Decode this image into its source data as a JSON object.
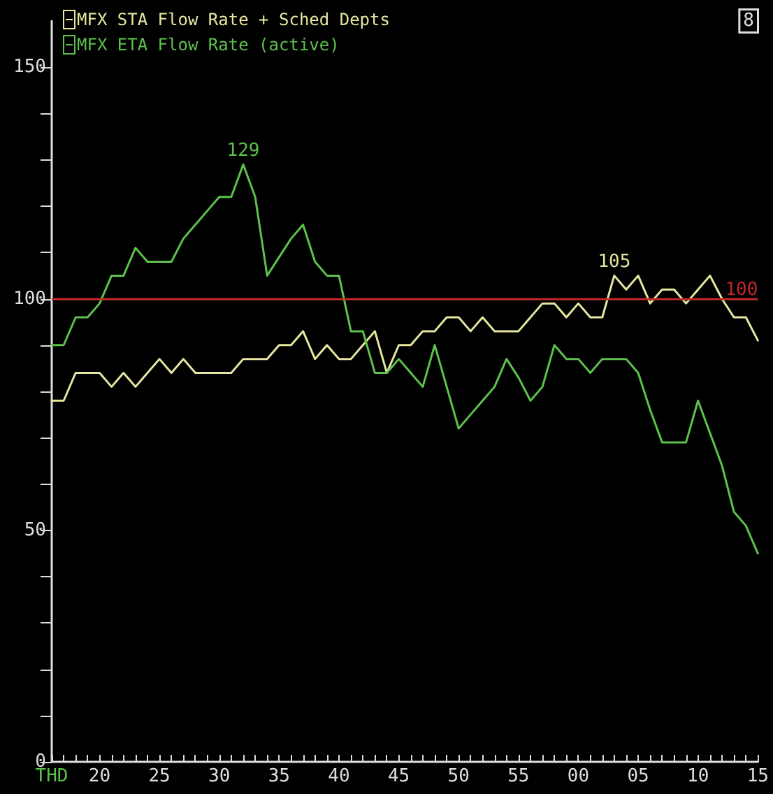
{
  "chart_data": {
    "type": "line",
    "categories": [
      "THD",
      null,
      null,
      null,
      "20",
      null,
      null,
      null,
      null,
      "25",
      null,
      null,
      null,
      null,
      "30",
      null,
      null,
      null,
      null,
      "35",
      null,
      null,
      null,
      null,
      "40",
      null,
      null,
      null,
      null,
      "45",
      null,
      null,
      null,
      null,
      "50",
      null,
      null,
      null,
      null,
      "55",
      null,
      null,
      null,
      null,
      "00",
      null,
      null,
      null,
      null,
      "05",
      null,
      null,
      null,
      null,
      "10",
      null,
      null,
      null,
      null,
      "15"
    ],
    "series": [
      {
        "name": "MFX STA Flow Rate + Sched Depts",
        "color": "#e6e6a0",
        "values": [
          78,
          78,
          84,
          84,
          84,
          81,
          84,
          81,
          84,
          87,
          84,
          87,
          84,
          84,
          84,
          84,
          87,
          87,
          87,
          90,
          90,
          93,
          87,
          90,
          87,
          87,
          90,
          93,
          84,
          90,
          90,
          93,
          93,
          96,
          96,
          93,
          96,
          93,
          93,
          93,
          96,
          99,
          99,
          96,
          99,
          96,
          96,
          105,
          102,
          105,
          99,
          102,
          102,
          99,
          102,
          105,
          100,
          96,
          96,
          91
        ],
        "value_labels": [
          null,
          null,
          null,
          null,
          null,
          null,
          null,
          null,
          null,
          null,
          null,
          null,
          null,
          null,
          null,
          null,
          null,
          null,
          null,
          null,
          null,
          null,
          null,
          null,
          null,
          null,
          null,
          null,
          null,
          null,
          null,
          null,
          null,
          null,
          null,
          null,
          null,
          null,
          null,
          null,
          null,
          null,
          null,
          null,
          null,
          null,
          null,
          "105",
          null,
          null,
          null,
          null,
          null,
          null,
          null,
          null,
          null,
          null,
          null,
          null
        ]
      },
      {
        "name": "MFX ETA Flow Rate (active)",
        "color": "#5cc24c",
        "values": [
          90,
          90,
          96,
          96,
          99,
          105,
          105,
          111,
          108,
          108,
          108,
          113,
          116,
          119,
          122,
          122,
          129,
          122,
          105,
          109,
          113,
          116,
          108,
          105,
          105,
          93,
          93,
          84,
          84,
          87,
          84,
          81,
          90,
          81,
          72,
          75,
          78,
          81,
          87,
          83,
          78,
          81,
          90,
          87,
          87,
          84,
          87,
          87,
          87,
          84,
          76,
          69,
          69,
          69,
          78,
          71,
          64,
          54,
          51,
          45
        ],
        "value_labels": [
          null,
          null,
          null,
          null,
          null,
          null,
          null,
          null,
          null,
          null,
          null,
          null,
          null,
          null,
          null,
          null,
          "129",
          null,
          null,
          null,
          null,
          null,
          null,
          null,
          null,
          null,
          null,
          null,
          null,
          null,
          null,
          null,
          null,
          null,
          null,
          null,
          null,
          null,
          null,
          null,
          null,
          null,
          null,
          null,
          null,
          null,
          null,
          null,
          null,
          null,
          null,
          null,
          null,
          null,
          null,
          null,
          null,
          null,
          null,
          null
        ]
      }
    ],
    "ylim": [
      0,
      160
    ],
    "yticks": [
      0,
      {
        "value": 10,
        "label": null
      },
      {
        "value": 20,
        "label": null
      },
      {
        "value": 30,
        "label": null
      },
      {
        "value": 40,
        "label": null
      },
      50,
      {
        "value": 60,
        "label": null
      },
      {
        "value": 70,
        "label": null
      },
      {
        "value": 80,
        "label": null
      },
      {
        "value": 90,
        "label": null
      },
      100,
      {
        "value": 110,
        "label": null
      },
      {
        "value": 120,
        "label": null
      },
      {
        "value": 130,
        "label": null
      },
      {
        "value": 140,
        "label": null
      },
      150
    ],
    "ref_lines": [
      {
        "axis": "y",
        "value": 100,
        "label": "100",
        "color": "#c0282a"
      }
    ],
    "annotations": [
      "8"
    ],
    "legend": "top left",
    "grid": false,
    "marker": "none",
    "line_style": "solid"
  }
}
